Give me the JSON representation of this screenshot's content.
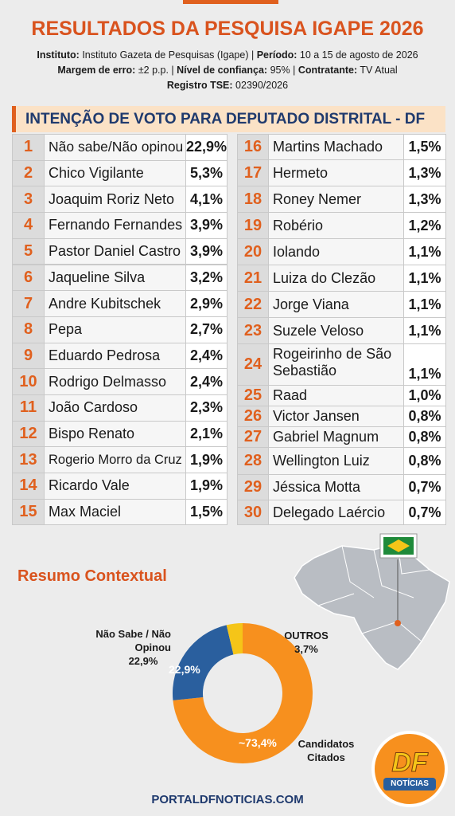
{
  "header": {
    "title": "RESULTADOS DA PESQUISA IGAPE 2026",
    "info": [
      [
        {
          "label": "Instituto:",
          "text": "Instituto Gazeta de Pesquisas (Igape) |"
        },
        {
          "label": "Período:",
          "text": "10 a 15 de agosto de 2026"
        }
      ],
      [
        {
          "label": "Margem de erro:",
          "text": "±2 p.p. |"
        },
        {
          "label": "Nível de confiança:",
          "text": "95% |"
        },
        {
          "label": "Contratante:",
          "text": "TV Atual"
        }
      ],
      [
        {
          "label": "Registro TSE:",
          "text": "02390/2026"
        }
      ]
    ]
  },
  "table": {
    "title": "INTENÇÃO DE VOTO PARA DEPUTADO DISTRITAL - DF",
    "rows": [
      [
        1,
        "Não sabe/Não opinou",
        "22,9%"
      ],
      [
        2,
        "Chico Vigilante",
        "5,3%"
      ],
      [
        3,
        "Joaquim Roriz Neto",
        "4,1%"
      ],
      [
        4,
        "Fernando Fernandes",
        "3,9%"
      ],
      [
        5,
        "Pastor Daniel Castro",
        "3,9%"
      ],
      [
        6,
        "Jaqueline Silva",
        "3,2%"
      ],
      [
        7,
        "Andre Kubitschek",
        "2,9%"
      ],
      [
        8,
        "Pepa",
        "2,7%"
      ],
      [
        9,
        "Eduardo Pedrosa",
        "2,4%"
      ],
      [
        10,
        "Rodrigo Delmasso",
        "2,4%"
      ],
      [
        11,
        "João Cardoso",
        "2,3%"
      ],
      [
        12,
        "Bispo Renato",
        "2,1%"
      ],
      [
        13,
        "Rogerio Morro da Cruz",
        "1,9%"
      ],
      [
        14,
        "Ricardo Vale",
        "1,9%"
      ],
      [
        15,
        "Max Maciel",
        "1,5%"
      ],
      [
        16,
        "Martins Machado",
        "1,5%"
      ],
      [
        17,
        "Hermeto",
        "1,3%"
      ],
      [
        18,
        "Roney Nemer",
        "1,3%"
      ],
      [
        19,
        "Robério",
        "1,2%"
      ],
      [
        20,
        "Iolando",
        "1,1%"
      ],
      [
        21,
        "Luiza do Clezão",
        "1,1%"
      ],
      [
        22,
        "Jorge Viana",
        "1,1%"
      ],
      [
        23,
        "Suzele Veloso",
        "1,1%"
      ],
      [
        24,
        "Rogeirinho de São Sebastião",
        "1,1%"
      ],
      [
        25,
        "Raad",
        "1,0%"
      ],
      [
        26,
        "Victor Jansen",
        "0,8%"
      ],
      [
        27,
        "Gabriel Magnum",
        "0,8%"
      ],
      [
        28,
        "Wellington Luiz",
        "0,8%"
      ],
      [
        29,
        "Jéssica Motta",
        "0,7%"
      ],
      [
        30,
        "Delegado Laércio",
        "0,7%"
      ]
    ]
  },
  "summary_title": "Resumo Contextual",
  "chart_data": {
    "type": "pie",
    "categories": [
      "Candidatos Citados",
      "Não Sabe / Não Opinou",
      "OUTROS"
    ],
    "values": [
      73.4,
      22.9,
      3.7
    ],
    "value_labels": [
      "~73,4%",
      "22,9%",
      "3,7%"
    ],
    "colors": [
      "#f7901e",
      "#2a5f9e",
      "#f5c518"
    ]
  },
  "logo": {
    "top": "DF",
    "bottom": "NOTÍCIAS"
  },
  "footer": "PORTALDFNOTICIAS.COM"
}
